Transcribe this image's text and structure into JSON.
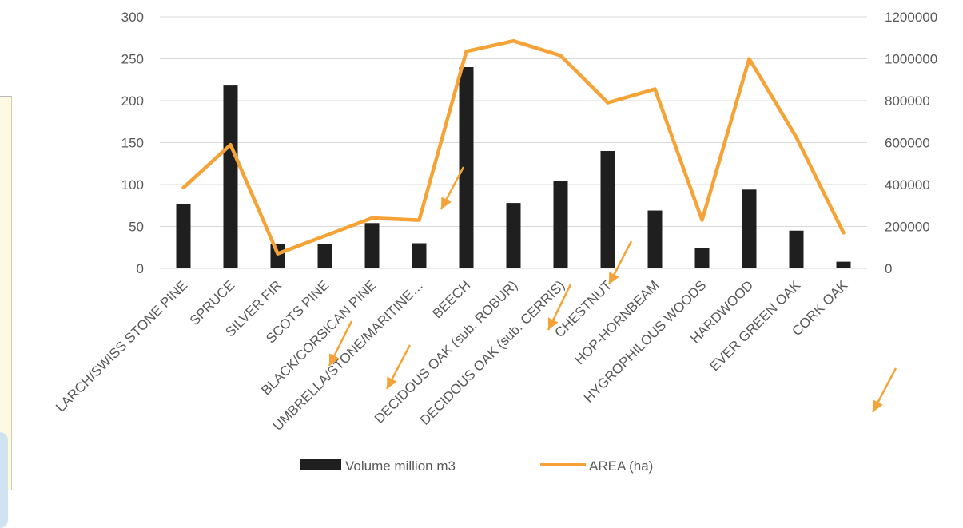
{
  "chart_data": {
    "type": "bar",
    "categories": [
      "LARCH/SWISS STONE PINE",
      "SPRUCE",
      "SILVER FIR",
      "SCOTS PINE",
      "BLACK/CORSICAN PINE",
      "UMBRELLA/STONE/MARITINE…",
      "BEECH",
      "DECIDOUS OAK (sub. ROBUR)",
      "DECIDOUS OAK (sub. CERRIS)",
      "CHESTNUT",
      "HOP-HORNBEAM",
      "HYGROPHILOUS WOODS",
      "HARDWOOD",
      "EVER GREEN OAK",
      "CORK OAK"
    ],
    "series": [
      {
        "name": "Volume million m3",
        "type": "bar",
        "axis": "left",
        "color": "#1f1f1f",
        "values": [
          77,
          218,
          29,
          29,
          54,
          30,
          240,
          78,
          104,
          140,
          69,
          24,
          94,
          45,
          8
        ]
      },
      {
        "name": "AREA (ha)",
        "type": "line",
        "axis": "right",
        "color": "#f5a336",
        "values": [
          385000,
          590000,
          70000,
          155000,
          240000,
          230000,
          1035000,
          1085000,
          1015000,
          790000,
          855000,
          230000,
          1000000,
          625000,
          170000
        ]
      }
    ],
    "y_left": {
      "ylim": [
        0,
        300
      ],
      "ticks": [
        "0",
        "50",
        "100",
        "150",
        "200",
        "250",
        "300"
      ]
    },
    "y_right": {
      "ylim": [
        0,
        1200000
      ],
      "ticks": [
        "0",
        "200000",
        "400000",
        "600000",
        "800000",
        "1000000",
        "1200000"
      ]
    },
    "grid": true,
    "legend_position": "bottom",
    "annotations": {
      "type": "arrow",
      "color": "#f5a336",
      "count": 6
    }
  }
}
